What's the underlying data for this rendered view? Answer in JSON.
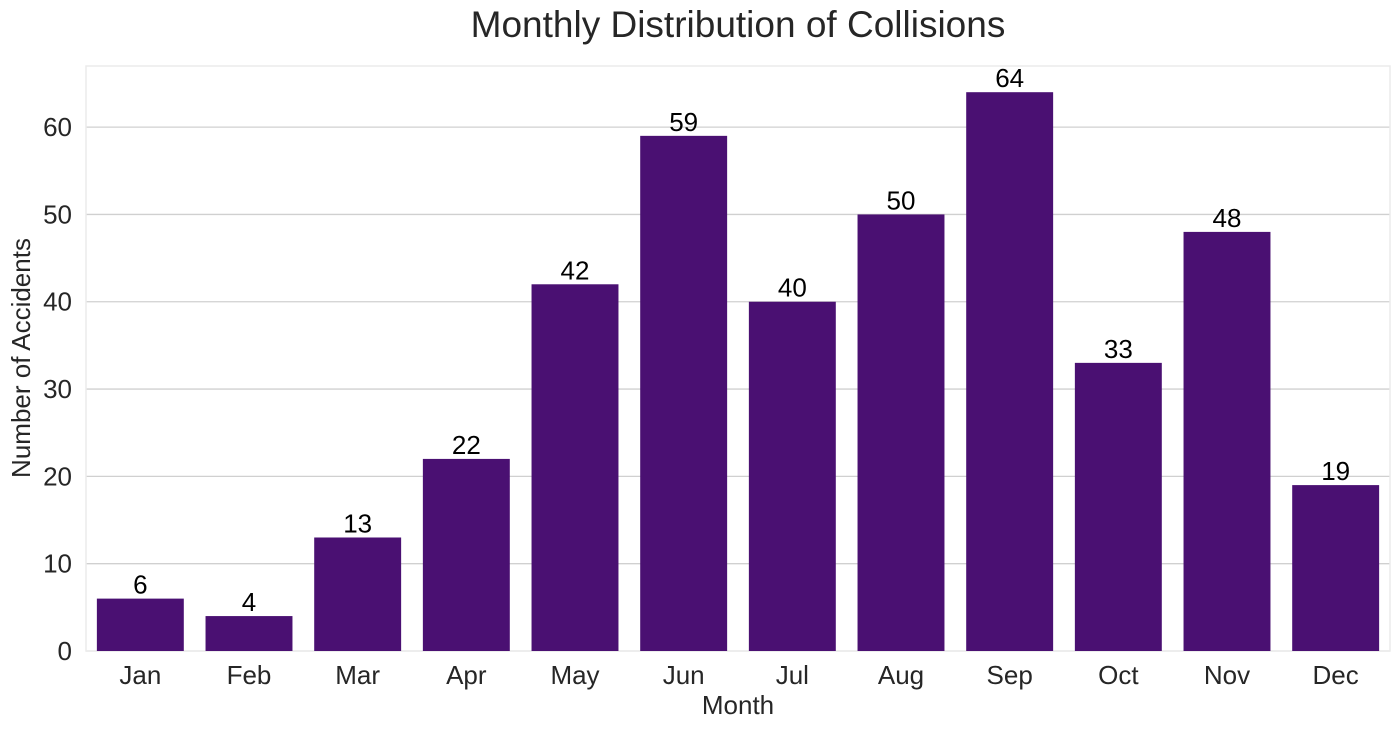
{
  "chart_data": {
    "type": "bar",
    "title": "Monthly Distribution of Collisions",
    "xlabel": "Month",
    "ylabel": "Number of Accidents",
    "categories": [
      "Jan",
      "Feb",
      "Mar",
      "Apr",
      "May",
      "Jun",
      "Jul",
      "Aug",
      "Sep",
      "Oct",
      "Nov",
      "Dec"
    ],
    "values": [
      6,
      4,
      13,
      22,
      42,
      59,
      40,
      50,
      64,
      33,
      48,
      19
    ],
    "ylim": [
      0,
      67
    ],
    "yticks": [
      0,
      10,
      20,
      30,
      40,
      50,
      60
    ],
    "grid": "horizontal",
    "bar_color": "#4a1072",
    "show_data_labels": true
  }
}
